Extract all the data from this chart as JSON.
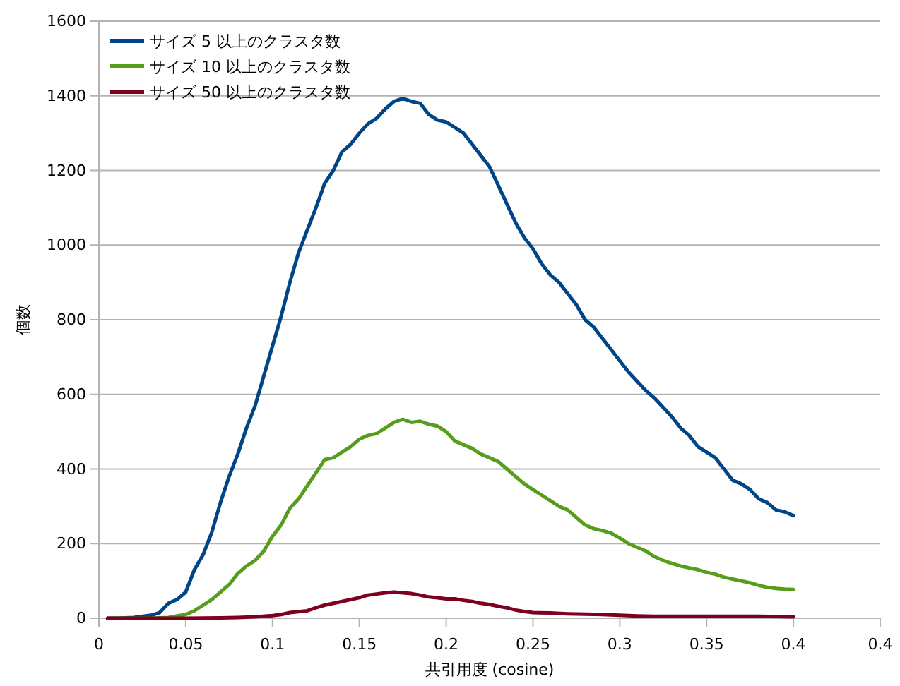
{
  "chart_data": {
    "type": "line",
    "xlabel": "共引用度 (cosine)",
    "ylabel": "個数",
    "xlim": [
      0,
      0.45
    ],
    "xticks": [
      0,
      0.05,
      0.1,
      0.15,
      0.2,
      0.25,
      0.3,
      0.35,
      0.4,
      {
        "value": 0.45,
        "label": "0.4"
      }
    ],
    "ylim": [
      0,
      1600
    ],
    "yticks": [
      0,
      200,
      400,
      600,
      800,
      1000,
      1200,
      1400,
      1600
    ],
    "grid": "y",
    "legend": "top left",
    "marker": "none",
    "line_style": "solid",
    "series": [
      {
        "name": "サイズ 5 以上のクラスタ数",
        "color": "#004586",
        "x": [
          0.005,
          0.01,
          0.02,
          0.03,
          0.035,
          0.04,
          0.045,
          0.05,
          0.055,
          0.06,
          0.065,
          0.07,
          0.075,
          0.08,
          0.085,
          0.09,
          0.095,
          0.1,
          0.105,
          0.11,
          0.115,
          0.12,
          0.125,
          0.13,
          0.135,
          0.14,
          0.145,
          0.15,
          0.155,
          0.16,
          0.165,
          0.17,
          0.175,
          0.18,
          0.185,
          0.19,
          0.195,
          0.2,
          0.205,
          0.21,
          0.215,
          0.22,
          0.225,
          0.23,
          0.235,
          0.24,
          0.245,
          0.25,
          0.255,
          0.26,
          0.265,
          0.27,
          0.275,
          0.28,
          0.285,
          0.29,
          0.295,
          0.3,
          0.305,
          0.31,
          0.315,
          0.32,
          0.325,
          0.33,
          0.335,
          0.34,
          0.345,
          0.35,
          0.355,
          0.36,
          0.365,
          0.37,
          0.375,
          0.38,
          0.385,
          0.39,
          0.395,
          0.4
        ],
        "values": [
          0,
          0,
          2,
          8,
          15,
          40,
          50,
          70,
          130,
          170,
          230,
          310,
          380,
          440,
          510,
          570,
          650,
          730,
          810,
          900,
          980,
          1040,
          1100,
          1165,
          1200,
          1250,
          1270,
          1300,
          1325,
          1340,
          1365,
          1385,
          1393,
          1385,
          1380,
          1350,
          1335,
          1330,
          1315,
          1300,
          1270,
          1240,
          1210,
          1160,
          1110,
          1060,
          1020,
          990,
          950,
          920,
          900,
          870,
          840,
          800,
          780,
          750,
          720,
          690,
          660,
          635,
          610,
          590,
          565,
          540,
          510,
          490,
          460,
          445,
          430,
          400,
          370,
          360,
          345,
          320,
          310,
          290,
          285,
          275
        ]
      },
      {
        "name": "サイズ 10 以上のクラスタ数",
        "color": "#579d1c",
        "x": [
          0.005,
          0.03,
          0.04,
          0.05,
          0.055,
          0.06,
          0.065,
          0.07,
          0.075,
          0.08,
          0.085,
          0.09,
          0.095,
          0.1,
          0.105,
          0.11,
          0.115,
          0.12,
          0.125,
          0.13,
          0.135,
          0.14,
          0.145,
          0.15,
          0.155,
          0.16,
          0.165,
          0.17,
          0.175,
          0.18,
          0.185,
          0.19,
          0.195,
          0.2,
          0.205,
          0.21,
          0.215,
          0.22,
          0.225,
          0.23,
          0.235,
          0.24,
          0.245,
          0.25,
          0.255,
          0.26,
          0.265,
          0.27,
          0.275,
          0.28,
          0.285,
          0.29,
          0.295,
          0.3,
          0.305,
          0.31,
          0.315,
          0.32,
          0.325,
          0.33,
          0.335,
          0.34,
          0.345,
          0.35,
          0.355,
          0.36,
          0.365,
          0.37,
          0.375,
          0.38,
          0.385,
          0.39,
          0.395,
          0.4
        ],
        "values": [
          0,
          0,
          2,
          10,
          20,
          35,
          50,
          70,
          90,
          120,
          140,
          155,
          180,
          220,
          250,
          295,
          320,
          355,
          390,
          425,
          430,
          445,
          460,
          480,
          490,
          495,
          510,
          525,
          533,
          525,
          528,
          520,
          515,
          500,
          475,
          465,
          455,
          440,
          430,
          420,
          400,
          380,
          360,
          345,
          330,
          315,
          300,
          290,
          270,
          250,
          240,
          235,
          228,
          215,
          200,
          190,
          180,
          165,
          155,
          147,
          140,
          135,
          130,
          123,
          118,
          110,
          105,
          100,
          95,
          88,
          83,
          80,
          78,
          77
        ]
      },
      {
        "name": "サイズ 50 以上のクラスタ数",
        "color": "#7e0021",
        "x": [
          0.005,
          0.05,
          0.07,
          0.08,
          0.09,
          0.1,
          0.105,
          0.11,
          0.12,
          0.125,
          0.13,
          0.14,
          0.15,
          0.155,
          0.16,
          0.165,
          0.17,
          0.175,
          0.18,
          0.185,
          0.19,
          0.195,
          0.2,
          0.205,
          0.21,
          0.215,
          0.22,
          0.225,
          0.23,
          0.235,
          0.24,
          0.245,
          0.25,
          0.26,
          0.27,
          0.28,
          0.29,
          0.3,
          0.31,
          0.32,
          0.34,
          0.36,
          0.38,
          0.4
        ],
        "values": [
          0,
          0,
          1,
          2,
          4,
          7,
          10,
          15,
          20,
          28,
          35,
          45,
          55,
          62,
          65,
          68,
          70,
          68,
          66,
          62,
          57,
          55,
          52,
          52,
          48,
          45,
          40,
          37,
          32,
          28,
          22,
          18,
          15,
          14,
          12,
          11,
          10,
          8,
          6,
          5,
          5,
          5,
          5,
          4
        ]
      }
    ]
  }
}
